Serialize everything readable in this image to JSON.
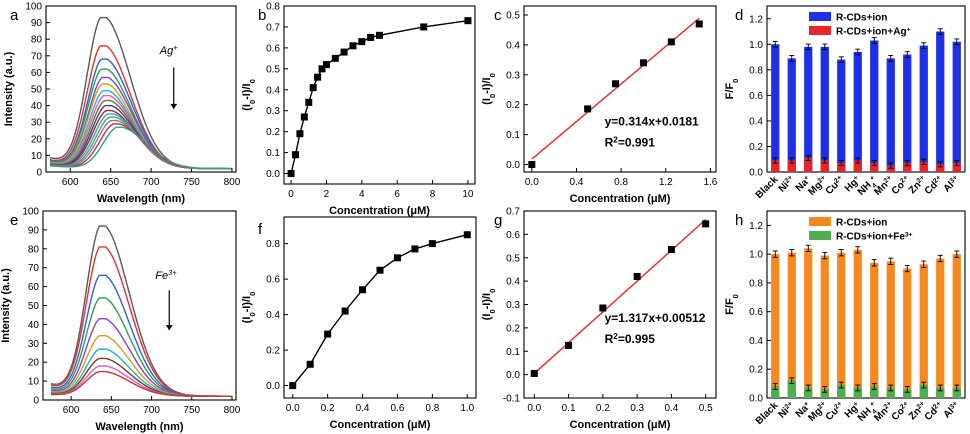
{
  "chart_data": [
    {
      "panel": "a",
      "type": "line",
      "xlabel": "Wavelength (nm)",
      "ylabel": "Intensity (a.u.)",
      "xlim": [
        570,
        805
      ],
      "ylim": [
        0,
        100
      ],
      "xticks": [
        600,
        650,
        700,
        750,
        800
      ],
      "yticks": [
        0,
        10,
        20,
        30,
        40,
        50,
        60,
        70,
        80,
        90,
        100
      ],
      "annotation": "Ag⁺",
      "annotation_parts": [
        "Ag",
        "+"
      ],
      "spectra": {
        "x_start": 575,
        "x_end": 800,
        "peaks": [
          91,
          74,
          66,
          60,
          55,
          51,
          47,
          44,
          41,
          38,
          35,
          33,
          31,
          29,
          27,
          25
        ],
        "peak_wavelengths": [
          640,
          640,
          641,
          641,
          642,
          642,
          643,
          644,
          645,
          646,
          647,
          649,
          651,
          653,
          656,
          660
        ],
        "colors": [
          "#5a5a5a",
          "#e8302c",
          "#2d5fd6",
          "#26a64a",
          "#8a3fcf",
          "#d4a017",
          "#1ab7c9",
          "#e05ad3",
          "#7a7a10",
          "#3c3c9c",
          "#9b2b2b",
          "#3aa0e8",
          "#55b030",
          "#9d6bd6",
          "#c0392b",
          "#2e9f8c"
        ]
      }
    },
    {
      "panel": "b",
      "type": "line",
      "xlabel": "Concentration (μM)",
      "ylabel": "(I₀-I)/I₀",
      "ylabel_parts": [
        "(I",
        "0",
        "-I)/I",
        "0"
      ],
      "xlim": [
        -0.4,
        10.4
      ],
      "ylim": [
        -0.05,
        0.8
      ],
      "xticks": [
        0,
        2,
        4,
        6,
        8,
        10
      ],
      "yticks": [
        0.0,
        0.1,
        0.2,
        0.3,
        0.4,
        0.5,
        0.6,
        0.7,
        0.8
      ],
      "x": [
        0,
        0.25,
        0.5,
        0.75,
        1.0,
        1.25,
        1.5,
        1.75,
        2.0,
        2.5,
        3.0,
        3.5,
        4.0,
        4.5,
        5.0,
        7.5,
        10
      ],
      "y": [
        0.0,
        0.09,
        0.19,
        0.27,
        0.34,
        0.41,
        0.46,
        0.5,
        0.52,
        0.55,
        0.58,
        0.61,
        0.63,
        0.65,
        0.66,
        0.7,
        0.73
      ]
    },
    {
      "panel": "c",
      "type": "scatter",
      "xlabel": "Concentration (μM)",
      "ylabel": "(I₀-I)/I₀",
      "ylabel_parts": [
        "(I",
        "0",
        "-I)/I",
        "0"
      ],
      "xlim": [
        -0.07,
        1.65
      ],
      "ylim": [
        -0.025,
        0.53
      ],
      "xticks": [
        0.0,
        0.4,
        0.8,
        1.2,
        1.6
      ],
      "yticks": [
        0.0,
        0.1,
        0.2,
        0.3,
        0.4,
        0.5
      ],
      "x": [
        0.0,
        0.5,
        0.75,
        1.0,
        1.25,
        1.5
      ],
      "y": [
        0.0,
        0.186,
        0.27,
        0.34,
        0.41,
        0.47
      ],
      "fit": {
        "slope": 0.314,
        "intercept": 0.0181,
        "x_range": [
          0.0,
          1.5
        ],
        "color": "#e8302c"
      },
      "equation": "y=0.314x+0.0181",
      "r2_prefix": "R",
      "r2_sup": "2",
      "r2_value": "=0.991"
    },
    {
      "panel": "d",
      "type": "bar",
      "ylabel": "F/F₀",
      "ylabel_parts": [
        "F/F",
        "0"
      ],
      "ylim": [
        0,
        1.3
      ],
      "yticks": [
        0.0,
        0.2,
        0.4,
        0.6,
        0.8,
        1.0,
        1.2
      ],
      "category_parts": [
        [
          "Black",
          ""
        ],
        [
          "Ni",
          "2+"
        ],
        [
          "Na",
          "+"
        ],
        [
          "Mg",
          "2+"
        ],
        [
          "Cu",
          "2+"
        ],
        [
          "Hg",
          "+"
        ],
        [
          "NH",
          "4",
          "+"
        ],
        [
          "Mn",
          "2+"
        ],
        [
          "Co",
          "2+"
        ],
        [
          "Zn",
          "2+"
        ],
        [
          "Cd",
          "2+"
        ],
        [
          "Al",
          "3+"
        ]
      ],
      "series": [
        {
          "name": "R-CDs+ion",
          "color": "#1f2fe8",
          "values": [
            1.0,
            0.89,
            0.98,
            0.98,
            0.88,
            0.94,
            1.03,
            0.89,
            0.92,
            0.99,
            1.1,
            1.02
          ]
        },
        {
          "name": "R-CDs+ion+Ag⁺",
          "name_parts": [
            "R-CDs+ion+Ag",
            "+"
          ],
          "color": "#e8262a",
          "values": [
            0.09,
            0.09,
            0.11,
            0.09,
            0.07,
            0.09,
            0.07,
            0.05,
            0.07,
            0.08,
            0.06,
            0.07
          ]
        }
      ],
      "legend": "top-right"
    },
    {
      "panel": "e",
      "type": "line",
      "xlabel": "Wavelength (nm)",
      "ylabel": "Intensity (a.u.)",
      "xlim": [
        565,
        805
      ],
      "ylim": [
        0,
        100
      ],
      "xticks": [
        600,
        650,
        700,
        750,
        800
      ],
      "yticks": [
        0,
        10,
        20,
        30,
        40,
        50,
        60,
        70,
        80,
        90,
        100
      ],
      "annotation": "Fe³⁺",
      "annotation_parts": [
        "Fe",
        "3+"
      ],
      "spectra": {
        "x_start": 575,
        "x_end": 800,
        "peaks": [
          90,
          79,
          64,
          52,
          41,
          32,
          25,
          20,
          16,
          13
        ],
        "peak_wavelengths": [
          638,
          638,
          638,
          638,
          638,
          638,
          638,
          638,
          638,
          638
        ],
        "colors": [
          "#5a5a5a",
          "#e8302c",
          "#2d5fd6",
          "#26a64a",
          "#8a3fcf",
          "#d4a017",
          "#1ab7c9",
          "#7a3b12",
          "#e05ad3",
          "#c0392b"
        ]
      }
    },
    {
      "panel": "f",
      "type": "line",
      "xlabel": "Concentration (μM)",
      "ylabel": "(I₀-I)/I₀",
      "ylabel_parts": [
        "(I",
        "0",
        "-I)/I",
        "0"
      ],
      "xlim": [
        -0.05,
        1.05
      ],
      "ylim": [
        -0.07,
        0.95
      ],
      "xticks": [
        0.0,
        0.2,
        0.4,
        0.6,
        0.8,
        1.0
      ],
      "yticks": [
        0.0,
        0.2,
        0.4,
        0.6,
        0.8
      ],
      "x": [
        0.0,
        0.1,
        0.2,
        0.3,
        0.4,
        0.5,
        0.6,
        0.7,
        0.8,
        1.0
      ],
      "y": [
        0.0,
        0.12,
        0.29,
        0.42,
        0.54,
        0.65,
        0.72,
        0.77,
        0.8,
        0.85
      ]
    },
    {
      "panel": "g",
      "type": "scatter",
      "xlabel": "Concentration (μM)",
      "ylabel": "(I₀-I)/I₀",
      "ylabel_parts": [
        "(I",
        "0",
        "-I)/I",
        "0"
      ],
      "xlim": [
        -0.03,
        0.53
      ],
      "ylim": [
        -0.1,
        0.7
      ],
      "xticks": [
        0.0,
        0.1,
        0.2,
        0.3,
        0.4,
        0.5
      ],
      "yticks": [
        -0.1,
        0.0,
        0.1,
        0.2,
        0.3,
        0.4,
        0.5,
        0.6,
        0.7
      ],
      "x": [
        0.0,
        0.1,
        0.2,
        0.3,
        0.4,
        0.5
      ],
      "y": [
        0.005,
        0.125,
        0.285,
        0.42,
        0.535,
        0.645
      ],
      "fit": {
        "slope": 1.317,
        "intercept": 0.00512,
        "x_range": [
          0.0,
          0.5
        ],
        "color": "#e8302c"
      },
      "equation": "y=1.317x+0.00512",
      "r2_prefix": "R",
      "r2_sup": "2",
      "r2_value": "=0.995"
    },
    {
      "panel": "h",
      "type": "bar",
      "ylabel": "F/F₀",
      "ylabel_parts": [
        "F/F",
        "0"
      ],
      "ylim": [
        0,
        1.3
      ],
      "yticks": [
        0.0,
        0.2,
        0.4,
        0.6,
        0.8,
        1.0,
        1.2
      ],
      "category_parts": [
        [
          "Black",
          ""
        ],
        [
          "Ni",
          "2+"
        ],
        [
          "Na",
          "+"
        ],
        [
          "Mg",
          "2+"
        ],
        [
          "Cu",
          "2+"
        ],
        [
          "Hg",
          "+"
        ],
        [
          "NH",
          "4",
          "+"
        ],
        [
          "Mn",
          "2+"
        ],
        [
          "Co",
          "2+"
        ],
        [
          "Zn",
          "2+"
        ],
        [
          "Cd",
          "2+"
        ],
        [
          "Al",
          "3+"
        ]
      ],
      "series": [
        {
          "name": "R-CDs+ion",
          "color": "#f5891f",
          "values": [
            1.0,
            1.01,
            1.04,
            0.99,
            1.01,
            1.03,
            0.94,
            0.95,
            0.9,
            0.93,
            0.97,
            1.0
          ]
        },
        {
          "name": "R-CDs+ion+Fe³⁺",
          "name_parts": [
            "R-CDs+ion+Fe",
            "3+"
          ],
          "color": "#4caf50",
          "values": [
            0.08,
            0.12,
            0.07,
            0.06,
            0.09,
            0.07,
            0.08,
            0.07,
            0.06,
            0.09,
            0.07,
            0.07
          ]
        }
      ],
      "legend": "top-right"
    }
  ]
}
